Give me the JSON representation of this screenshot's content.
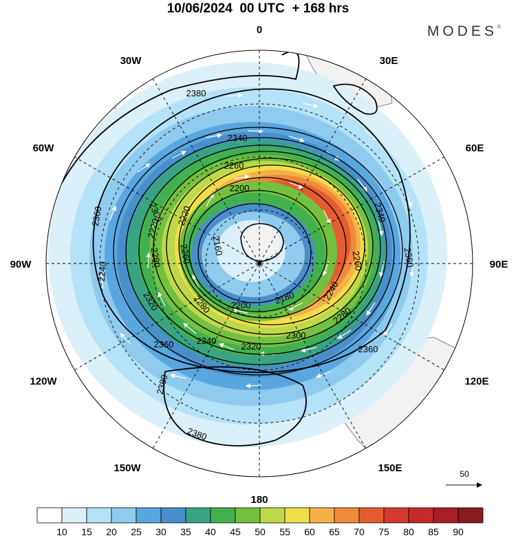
{
  "header": {
    "title": "10/06/2024  00 UTC  + 168 hrs",
    "brand": "MODES",
    "brand_mark": "©"
  },
  "map": {
    "projection": "polar-stereographic-south",
    "longitude_labels": [
      "0",
      "30E",
      "60E",
      "90E",
      "120E",
      "150E",
      "180",
      "150W",
      "120W",
      "90W",
      "60W",
      "30W"
    ],
    "land_color": "#f2f2f2",
    "wind_speed_shading": [
      {
        "min": 10,
        "color": "#dcf0fa"
      },
      {
        "min": 15,
        "color": "#b4e2f7"
      },
      {
        "min": 20,
        "color": "#8ecbef"
      },
      {
        "min": 25,
        "color": "#5aa6df"
      },
      {
        "min": 30,
        "color": "#4a8fc9"
      },
      {
        "min": 35,
        "color": "#3aa383"
      },
      {
        "min": 40,
        "color": "#43b04f"
      },
      {
        "min": 45,
        "color": "#74c040"
      },
      {
        "min": 50,
        "color": "#bdd84a"
      },
      {
        "min": 55,
        "color": "#f2de4a"
      },
      {
        "min": 60,
        "color": "#f5b04a"
      },
      {
        "min": 65,
        "color": "#f08a3a"
      },
      {
        "min": 70,
        "color": "#e45d30"
      },
      {
        "min": 75,
        "color": "#d43a2d"
      }
    ],
    "geopotential_contours": [
      {
        "label": "2380"
      },
      {
        "label": "2360"
      },
      {
        "label": "2340"
      },
      {
        "label": "2320"
      },
      {
        "label": "2300"
      },
      {
        "label": "2280"
      },
      {
        "label": "2260"
      },
      {
        "label": "2240"
      },
      {
        "label": "2220"
      },
      {
        "label": "2200"
      },
      {
        "label": "2180"
      },
      {
        "label": "2160"
      }
    ],
    "contour_labels": [
      {
        "text": "2380"
      },
      {
        "text": "2380"
      },
      {
        "text": "2380"
      },
      {
        "text": "2360"
      },
      {
        "text": "2360"
      },
      {
        "text": "2360"
      },
      {
        "text": "2360"
      },
      {
        "text": "2340"
      },
      {
        "text": "2340"
      },
      {
        "text": "2340"
      },
      {
        "text": "2320"
      },
      {
        "text": "2320"
      },
      {
        "text": "2300"
      },
      {
        "text": "2300"
      },
      {
        "text": "2280"
      },
      {
        "text": "2280"
      },
      {
        "text": "2280"
      },
      {
        "text": "2260"
      },
      {
        "text": "2260"
      },
      {
        "text": "2260"
      },
      {
        "text": "2240"
      },
      {
        "text": "2240"
      },
      {
        "text": "2220"
      },
      {
        "text": "2200"
      },
      {
        "text": "2200"
      },
      {
        "text": "2180"
      },
      {
        "text": "2160"
      },
      {
        "text": "2220"
      }
    ],
    "wind_vectors_color": "#ffffff",
    "reference_vector_label": "50"
  },
  "colorbar": {
    "labels": [
      "10",
      "15",
      "20",
      "25",
      "30",
      "35",
      "40",
      "45",
      "50",
      "55",
      "60",
      "65",
      "70",
      "75",
      "80",
      "85",
      "90"
    ],
    "colors": [
      "#ffffff",
      "#dcf0fa",
      "#b4e2f7",
      "#8ecbef",
      "#5aa6df",
      "#4a8fc9",
      "#3aa383",
      "#43b04f",
      "#74c040",
      "#bdd84a",
      "#f2de4a",
      "#f5b04a",
      "#f08a3a",
      "#e45d30",
      "#d43a2d",
      "#c42a2a",
      "#a81e23",
      "#8a1a1e"
    ]
  }
}
